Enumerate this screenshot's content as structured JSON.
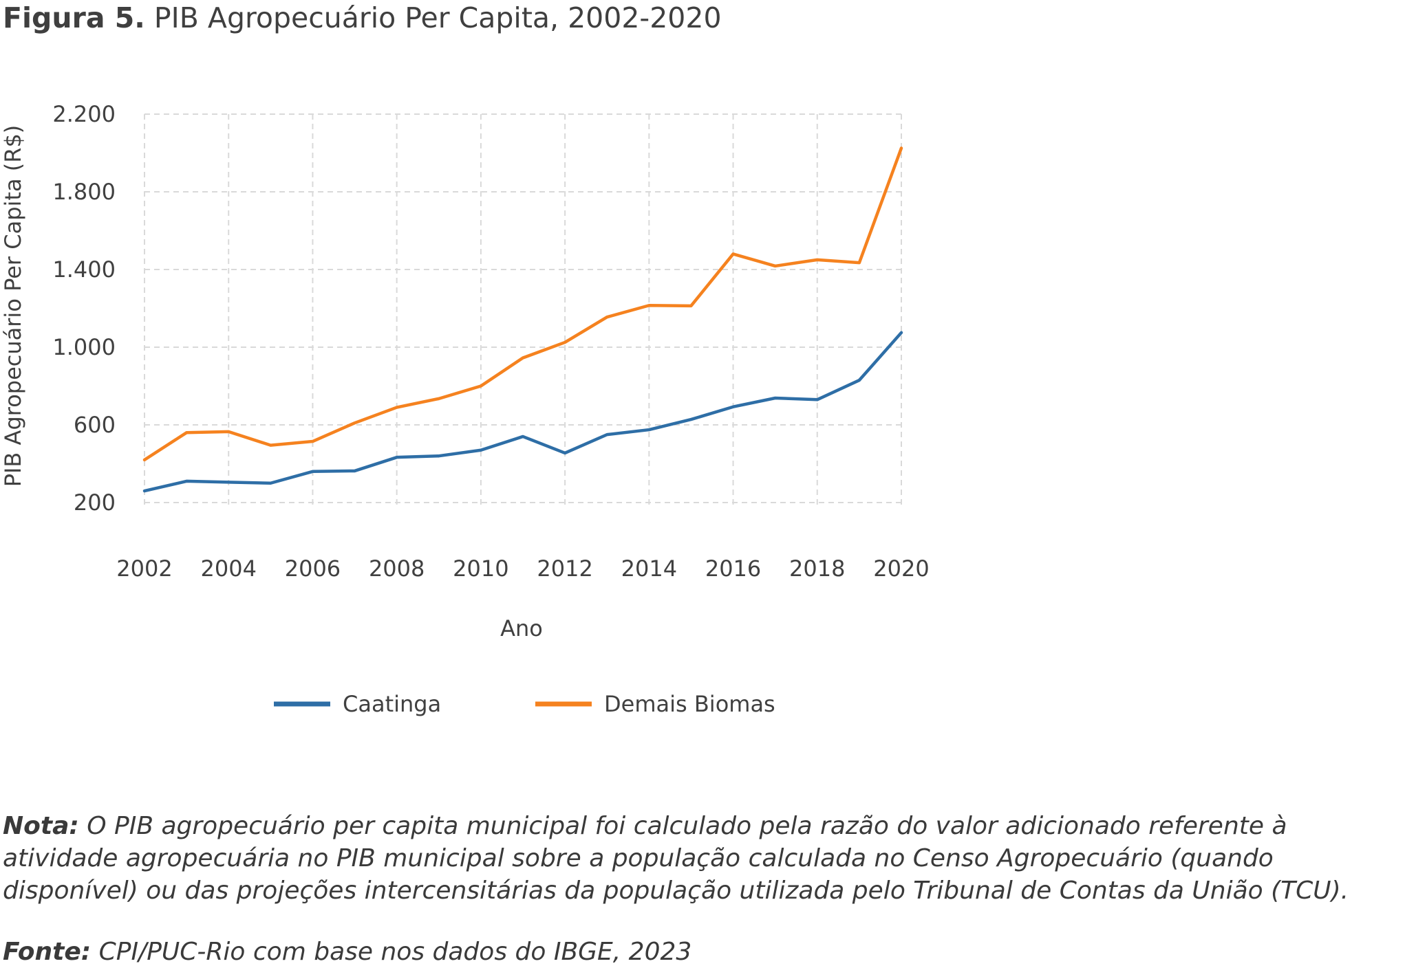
{
  "figure": {
    "label": "Figura 5.",
    "title": "PIB Agropecuário Per Capita, 2002-2020"
  },
  "chart_data": {
    "type": "line",
    "title": "PIB Agropecuário Per Capita, 2002-2020",
    "xlabel": "Ano",
    "ylabel": "PIB Agropecuário Per Capita (R$)",
    "xlim": [
      2002,
      2020
    ],
    "ylim": [
      200,
      2200
    ],
    "x_ticks": [
      2002,
      2004,
      2006,
      2008,
      2010,
      2012,
      2014,
      2016,
      2018,
      2020
    ],
    "x_tick_labels": [
      "2002",
      "2004",
      "2006",
      "2008",
      "2010",
      "2012",
      "2014",
      "2016",
      "2018",
      "2020"
    ],
    "y_ticks": [
      200,
      600,
      1000,
      1400,
      1800,
      2200
    ],
    "y_tick_labels": [
      "200",
      "600",
      "1.000",
      "1.400",
      "1.800",
      "2.200"
    ],
    "grid": true,
    "legend_position": "bottom",
    "x": [
      2002,
      2003,
      2004,
      2005,
      2006,
      2007,
      2008,
      2009,
      2010,
      2011,
      2012,
      2013,
      2014,
      2015,
      2016,
      2017,
      2018,
      2019,
      2020
    ],
    "series": [
      {
        "name": "Caatinga",
        "color": "#2e6ea6",
        "values": [
          260,
          310,
          305,
          300,
          360,
          363,
          433,
          440,
          470,
          540,
          455,
          550,
          575,
          628,
          693,
          738,
          730,
          830,
          1075
        ]
      },
      {
        "name": "Demais Biomas",
        "color": "#f5821f",
        "values": [
          420,
          560,
          565,
          495,
          515,
          610,
          690,
          735,
          800,
          945,
          1025,
          1155,
          1215,
          1213,
          1480,
          1418,
          1450,
          1435,
          2025
        ]
      }
    ]
  },
  "notes": {
    "nota_label": "Nota:",
    "nota_text": " O PIB agropecuário per capita municipal foi calculado pela razão do valor adicionado referente à atividade agropecuária no PIB municipal sobre a população calculada no Censo Agropecuário (quando disponível) ou das projeções intercensitárias da população utilizada pelo Tribunal de Contas da União (TCU).",
    "fonte_label": "Fonte:",
    "fonte_text": " CPI/PUC-Rio com base nos dados do IBGE, 2023"
  }
}
